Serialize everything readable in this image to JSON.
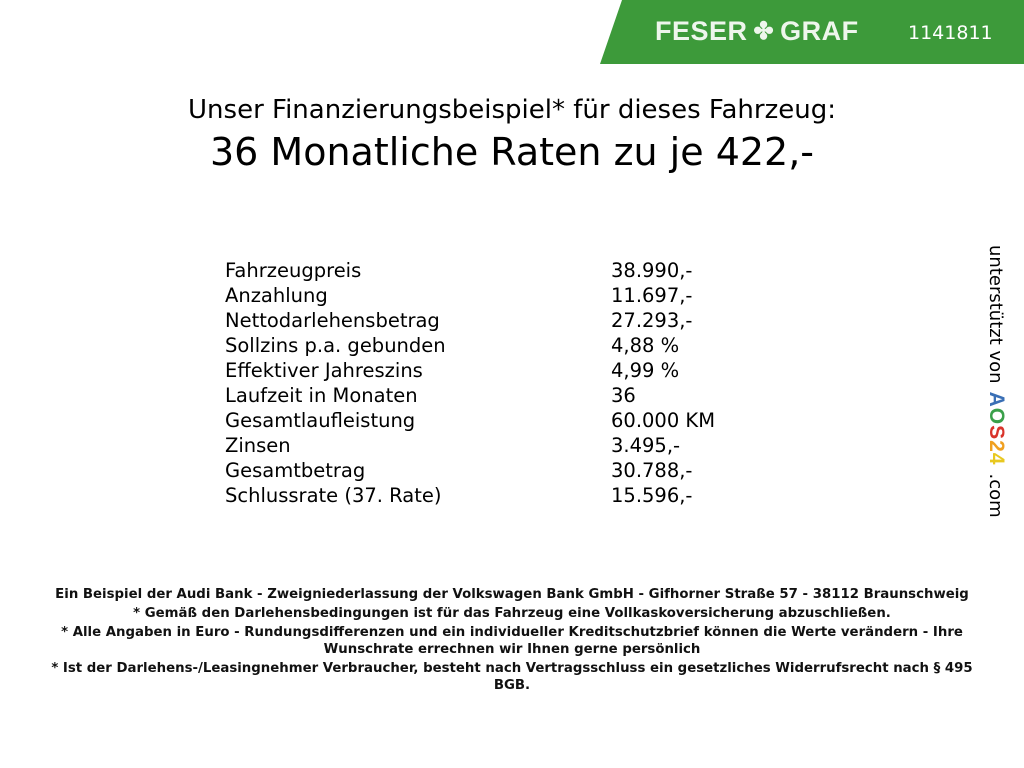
{
  "header": {
    "brand": "FESER",
    "brand2": "GRAF",
    "logo_icon": "clover-icon",
    "vehicle_id": "1141811",
    "banner_color": "#3d9a3a"
  },
  "title": {
    "line1": "Unser Finanzierungsbeispiel* für dieses Fahrzeug:",
    "line2": "36 Monatliche Raten zu je 422,-"
  },
  "rows": [
    {
      "label": "Fahrzeugpreis",
      "value": "38.990,-"
    },
    {
      "label": "Anzahlung",
      "value": "11.697,-"
    },
    {
      "label": "Nettodarlehensbetrag",
      "value": "27.293,-"
    },
    {
      "label": "Sollzins p.a. gebunden",
      "value": "4,88 %"
    },
    {
      "label": "Effektiver Jahreszins",
      "value": "4,99 %"
    },
    {
      "label": "Laufzeit in Monaten",
      "value": "36"
    },
    {
      "label": "Gesamtlaufleistung",
      "value": "60.000 KM"
    },
    {
      "label": "Zinsen",
      "value": "3.495,-"
    },
    {
      "label": "Gesamtbetrag",
      "value": "30.788,-"
    },
    {
      "label": "Schlussrate (37. Rate)",
      "value": "15.596,-"
    }
  ],
  "side": {
    "text": "unterstützt von",
    "logo": "AOS24",
    "suffix": ".com"
  },
  "footer": [
    "Ein Beispiel der Audi Bank - Zweigniederlassung der Volkswagen Bank GmbH - Gifhorner Straße 57 - 38112 Braunschweig",
    "* Gemäß den Darlehensbedingungen ist für das Fahrzeug eine Vollkaskoversicherung abzuschließen.",
    "* Alle Angaben in Euro - Rundungsdifferenzen und ein individueller Kreditschutzbrief können die Werte verändern - Ihre Wunschrate errechnen wir Ihnen gerne persönlich",
    "* Ist der Darlehens-/Leasingnehmer Verbraucher, besteht nach Vertragsschluss ein gesetzliches Widerrufsrecht nach § 495 BGB."
  ]
}
